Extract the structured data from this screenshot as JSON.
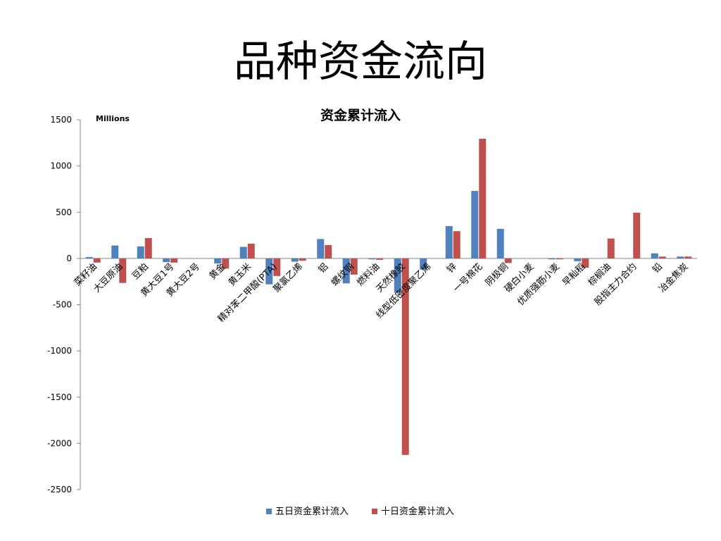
{
  "slide": {
    "title": "品种资金流向"
  },
  "chart_data": {
    "type": "bar",
    "title": "资金累计流入",
    "unit_label": "Millions",
    "xlabel": "",
    "ylabel": "",
    "ylim": [
      -2500,
      1500
    ],
    "yticks": [
      1500,
      1000,
      500,
      0,
      -500,
      -1000,
      -1500,
      -2000,
      -2500
    ],
    "legend_position": "bottom",
    "categories": [
      "菜籽油",
      "大豆原油",
      "豆粕",
      "黄大豆1号",
      "黄大豆2号",
      "黄金",
      "黄玉米",
      "精对苯二甲酸(PTA)",
      "聚氯乙烯",
      "铝",
      "螺纹钢",
      "燃料油",
      "天然橡胶",
      "线型低密度聚乙烯",
      "锌",
      "一号棉花",
      "阴极铜",
      "硬白小麦",
      "优质强筋小麦",
      "早籼稻",
      "棕榈油",
      "股指主力合约",
      "铅",
      "冶金焦炭"
    ],
    "series": [
      {
        "name": "五日资金累计流入",
        "color": "#4f81bd",
        "values": [
          15,
          140,
          130,
          -40,
          0,
          -55,
          125,
          -280,
          -35,
          210,
          -270,
          -10,
          -370,
          -120,
          350,
          730,
          320,
          0,
          -10,
          -30,
          0,
          0,
          55,
          20
        ]
      },
      {
        "name": "十日资金累计流入",
        "color": "#c0504d",
        "values": [
          -45,
          -265,
          220,
          -45,
          0,
          -110,
          160,
          -190,
          -25,
          145,
          -175,
          -15,
          -2125,
          0,
          295,
          1295,
          -50,
          0,
          -10,
          -100,
          215,
          495,
          20,
          20
        ]
      }
    ]
  }
}
